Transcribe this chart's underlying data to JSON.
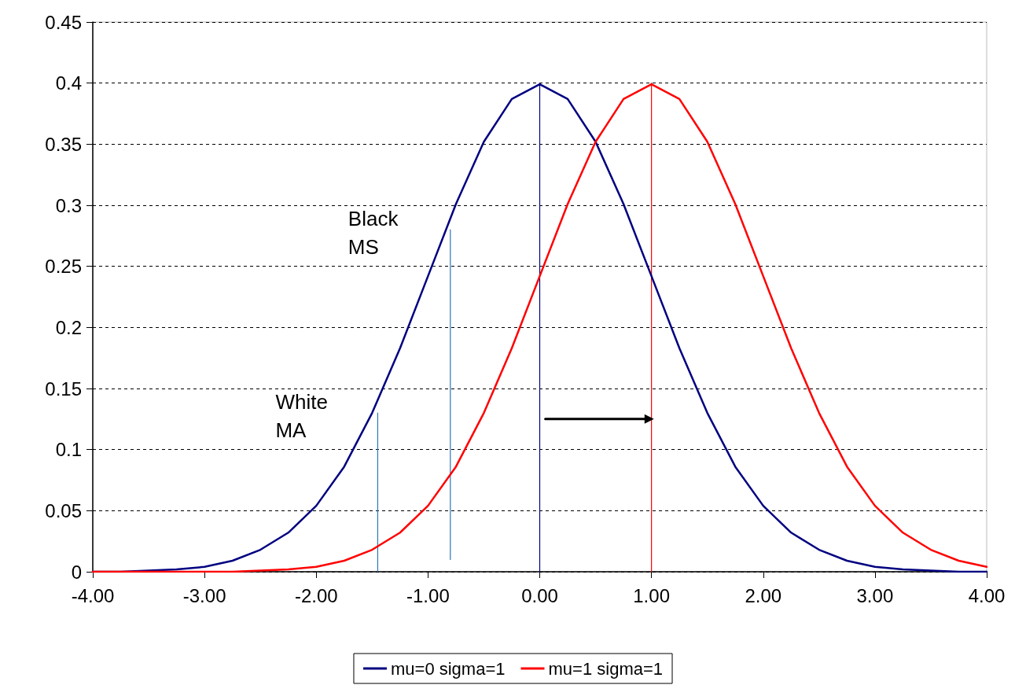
{
  "chart_data": {
    "type": "line",
    "xlim": [
      -4,
      4
    ],
    "xticks": [
      {
        "value": -4,
        "label": "-4.00"
      },
      {
        "value": -3,
        "label": "-3.00"
      },
      {
        "value": -2,
        "label": "-2.00"
      },
      {
        "value": -1,
        "label": "-1.00"
      },
      {
        "value": 0,
        "label": "0.00"
      },
      {
        "value": 1,
        "label": "1.00"
      },
      {
        "value": 2,
        "label": "2.00"
      },
      {
        "value": 3,
        "label": "3.00"
      },
      {
        "value": 4,
        "label": "4.00"
      }
    ],
    "ylim": [
      0,
      0.45
    ],
    "yticks": [
      0,
      0.05,
      0.1,
      0.15,
      0.2,
      0.25,
      0.3,
      0.35,
      0.4,
      0.45
    ],
    "grid": "y",
    "legend": "bottom",
    "marker": "none",
    "line_style": "solid",
    "series": [
      {
        "name": "mu=0 sigma=1",
        "color": "#000080",
        "x": [
          -4,
          -3.75,
          -3.5,
          -3.25,
          -3,
          -2.75,
          -2.5,
          -2.25,
          -2,
          -1.75,
          -1.5,
          -1.25,
          -1,
          -0.75,
          -0.5,
          -0.25,
          0,
          0.25,
          0.5,
          0.75,
          1,
          1.25,
          1.5,
          1.75,
          2,
          2.25,
          2.5,
          2.75,
          3,
          3.25,
          3.5,
          3.75,
          4
        ],
        "values": [
          0,
          0,
          0.001,
          0.002,
          0.004,
          0.009,
          0.018,
          0.032,
          0.054,
          0.086,
          0.13,
          0.183,
          0.242,
          0.301,
          0.352,
          0.387,
          0.399,
          0.387,
          0.352,
          0.301,
          0.242,
          0.183,
          0.13,
          0.086,
          0.054,
          0.032,
          0.018,
          0.009,
          0.004,
          0.002,
          0.001,
          0,
          0
        ]
      },
      {
        "name": "mu=1 sigma=1",
        "color": "#ff0000",
        "x": [
          -4,
          -3.75,
          -3.5,
          -3.25,
          -3,
          -2.75,
          -2.5,
          -2.25,
          -2,
          -1.75,
          -1.5,
          -1.25,
          -1,
          -0.75,
          -0.5,
          -0.25,
          0,
          0.25,
          0.5,
          0.75,
          1,
          1.25,
          1.5,
          1.75,
          2,
          2.25,
          2.5,
          2.75,
          3,
          3.25,
          3.5,
          3.75,
          4
        ],
        "values": [
          0,
          0,
          0,
          0,
          0,
          0,
          0.001,
          0.002,
          0.004,
          0.009,
          0.018,
          0.032,
          0.054,
          0.086,
          0.13,
          0.183,
          0.242,
          0.301,
          0.352,
          0.387,
          0.399,
          0.387,
          0.352,
          0.301,
          0.242,
          0.183,
          0.13,
          0.086,
          0.054,
          0.032,
          0.018,
          0.009,
          0.004
        ]
      },
      {
        "color": "#2e75b6",
        "x": [
          -1.45,
          -1.45
        ],
        "values": [
          0,
          0.13
        ]
      },
      {
        "color": "#2e75b6",
        "x": [
          -0.8,
          -0.8
        ],
        "values": [
          0.01,
          0.28
        ]
      },
      {
        "color": "#000080",
        "x": [
          0,
          0
        ],
        "values": [
          0,
          0.4
        ]
      },
      {
        "color": "#ff0000",
        "x": [
          1,
          1
        ],
        "values": [
          0,
          0.4
        ]
      },
      {
        "color": "#000000",
        "marker": "triangle",
        "x": [
          0.05,
          0.98
        ],
        "values": [
          0.125,
          0.125
        ]
      }
    ],
    "annotations": [
      {
        "text": "White MA",
        "x": -1.45,
        "y": 0.13
      },
      {
        "text": "Black MS",
        "x": -0.8,
        "y": 0.28
      }
    ]
  }
}
